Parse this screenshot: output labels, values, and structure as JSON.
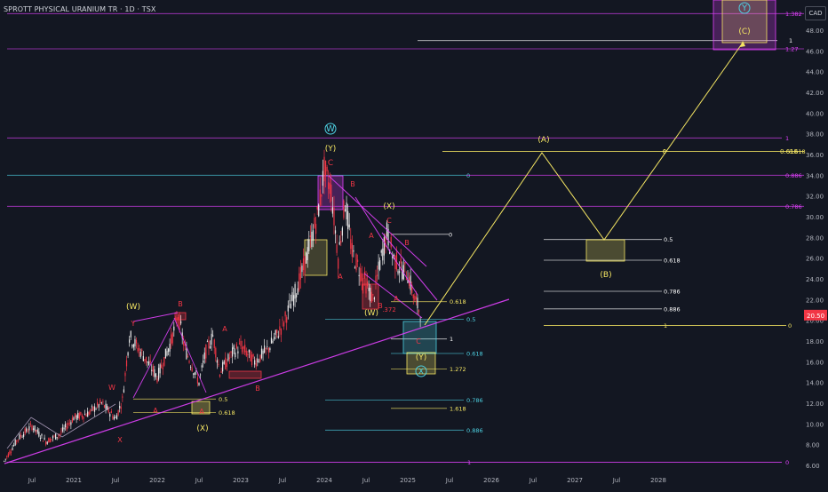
{
  "header": {
    "title": "SPROTT PHYSICAL URANIUM TR · 1D · TSX",
    "currency": "CAD",
    "last_price": "20.50"
  },
  "colors": {
    "background": "#131722",
    "axis_text": "#b2b5be",
    "candle": "#e8e8e8",
    "pink_line": "#c54fd6",
    "magenta": "#e040fb",
    "yellow": "#f5e663",
    "red": "#f23645",
    "cyan": "#4dd0e1",
    "last_price_tag": "#f23645"
  },
  "chart_data": {
    "type": "line",
    "ylim": [
      5.5,
      51.5
    ],
    "y_ticks": [
      "6.00",
      "8.00",
      "10.00",
      "12.00",
      "14.00",
      "16.00",
      "18.00",
      "20.00",
      "22.00",
      "24.00",
      "26.00",
      "28.00",
      "30.00",
      "32.00",
      "34.00",
      "36.00",
      "38.00",
      "40.00",
      "42.00",
      "44.00",
      "46.00",
      "48.00"
    ],
    "x_ticks": [
      "Jul",
      "2021",
      "Jul",
      "2022",
      "Jul",
      "2023",
      "Jul",
      "2024",
      "Jul",
      "2025",
      "Jul",
      "2026",
      "Jul",
      "2027",
      "Jul",
      "2028"
    ],
    "series": [
      {
        "values_note": "",
        "dates": [
          "2020-03",
          "2020-05",
          "2020-07",
          "2020-09",
          "2020-11",
          "2021-01",
          "2021-03",
          "2021-05",
          "2021-07",
          "2021-08",
          "2021-09",
          "2021-11",
          "2022-01",
          "2022-03",
          "2022-04",
          "2022-05",
          "2022-07",
          "2022-08",
          "2022-09",
          "2022-10",
          "2022-12",
          "2023-01",
          "2023-03",
          "2023-05",
          "2023-07",
          "2023-09",
          "2023-10",
          "2023-12",
          "2024-01",
          "2024-02",
          "2024-03",
          "2024-04",
          "2024-05",
          "2024-06",
          "2024-08",
          "2024-09",
          "2024-10",
          "2024-11",
          "2024-12",
          "2025-01",
          "2025-02",
          "2025-03"
        ],
        "values": [
          6.4,
          8.6,
          9.8,
          8.3,
          9.0,
          10.6,
          11.0,
          12.0,
          10.5,
          12.3,
          18.5,
          16.6,
          14.5,
          18.0,
          20.5,
          17.2,
          14.0,
          17.0,
          18.5,
          15.0,
          17.0,
          17.5,
          16.0,
          17.3,
          19.5,
          23.0,
          25.0,
          30.0,
          34.5,
          32.5,
          26.0,
          31.5,
          26.5,
          25.0,
          22.0,
          25.5,
          28.5,
          26.0,
          25.0,
          24.5,
          22.0,
          20.5
        ]
      }
    ],
    "horizontal_levels": [
      {
        "label": "1.382",
        "price": 49.6
      },
      {
        "label": "1",
        "price": 47.0
      },
      {
        "label": "1.27",
        "price": 46.2
      },
      {
        "label": "1",
        "price": 37.6
      },
      {
        "label": "0",
        "price": 36.3
      },
      {
        "label": "0.618",
        "price": 36.3
      },
      {
        "label": "0",
        "price": 34.0
      },
      {
        "label": "0.886",
        "price": 34.0
      },
      {
        "label": "0.786",
        "price": 31.0
      },
      {
        "label": "0",
        "price": 28.3
      },
      {
        "label": "0.5",
        "price": 27.8
      },
      {
        "label": "0.618",
        "price": 25.8
      },
      {
        "label": "0.786",
        "price": 22.8
      },
      {
        "label": "0.886",
        "price": 21.1
      },
      {
        "label": "1",
        "price": 19.5
      },
      {
        "label": "0",
        "price": 19.5
      },
      {
        "label": "0.618",
        "price": 21.8
      },
      {
        "label": "0.5",
        "price": 20.1
      },
      {
        "label": "1",
        "price": 18.2
      },
      {
        "label": "0.618",
        "price": 16.8
      },
      {
        "label": "1.272",
        "price": 15.3
      },
      {
        "label": "0.786",
        "price": 12.3
      },
      {
        "label": "1.618",
        "price": 11.5
      },
      {
        "label": "0.886",
        "price": 9.4
      },
      {
        "label": "1",
        "price": 6.3
      },
      {
        "label": "0",
        "price": 6.3
      },
      {
        "label": "0.5",
        "price": 12.4
      },
      {
        "label": "0.618",
        "price": 11.1
      }
    ],
    "wave_labels": [
      "W",
      "(Y)",
      "C",
      "B",
      "(X)",
      "A",
      "B",
      "C",
      "A",
      "(W)",
      "B",
      ".372",
      "A",
      "C",
      "(Y)",
      "X",
      "(W)",
      "B",
      "Y",
      "W",
      "X",
      "A",
      "(X)",
      "A",
      "B",
      "A",
      "(A)",
      "(B)",
      "(C)",
      "Y",
      "0",
      "0.618"
    ],
    "projection": {
      "points": [
        {
          "date": "2025-03",
          "price": 19.5
        },
        {
          "date": "2026-08",
          "price": 36.5
        },
        {
          "date": "2027-02",
          "price": 27.8
        },
        {
          "date": "2028-05",
          "price": 47.0
        }
      ],
      "labels": [
        "(A)",
        "(B)",
        "(C)"
      ]
    }
  }
}
